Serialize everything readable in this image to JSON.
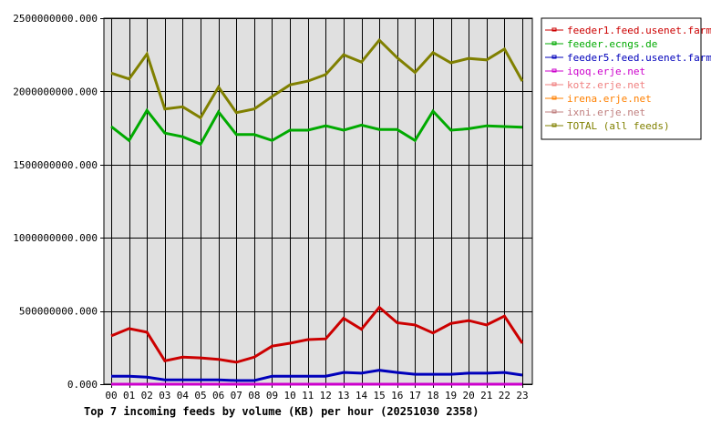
{
  "chart_data": {
    "type": "line",
    "title": "Top 7 incoming feeds by volume (KB) per hour (20251030 2358)",
    "xlabel": "",
    "ylabel": "",
    "ylim": [
      0,
      2500000000
    ],
    "yticks": [
      "0.000",
      "500000000.000",
      "1000000000.000",
      "1500000000.000",
      "2000000000.000",
      "2500000000.000"
    ],
    "ytick_values": [
      0,
      500000000,
      1000000000,
      1500000000,
      2000000000,
      2500000000
    ],
    "grid": true,
    "legend_position": "right",
    "plot_background": "#e0e0e0",
    "categories": [
      "00",
      "01",
      "02",
      "03",
      "04",
      "05",
      "06",
      "07",
      "08",
      "09",
      "10",
      "11",
      "12",
      "13",
      "14",
      "15",
      "16",
      "17",
      "18",
      "19",
      "20",
      "21",
      "22",
      "23"
    ],
    "series": [
      {
        "name": "feeder1.feed.usenet.farm",
        "color": "#cc0000",
        "values": [
          330000000,
          380000000,
          355000000,
          160000000,
          185000000,
          180000000,
          170000000,
          150000000,
          185000000,
          260000000,
          280000000,
          305000000,
          310000000,
          450000000,
          375000000,
          525000000,
          420000000,
          405000000,
          350000000,
          415000000,
          435000000,
          405000000,
          465000000,
          280000000
        ]
      },
      {
        "name": "feeder.ecngs.de",
        "color": "#00aa00",
        "values": [
          1760000000,
          1665000000,
          1870000000,
          1715000000,
          1690000000,
          1640000000,
          1860000000,
          1705000000,
          1705000000,
          1665000000,
          1735000000,
          1735000000,
          1765000000,
          1735000000,
          1770000000,
          1740000000,
          1740000000,
          1665000000,
          1865000000,
          1735000000,
          1745000000,
          1765000000,
          1760000000,
          1755000000
        ]
      },
      {
        "name": "feeder5.feed.usenet.farm",
        "color": "#0000bb",
        "values": [
          55000000,
          55000000,
          48000000,
          30000000,
          30000000,
          30000000,
          30000000,
          25000000,
          25000000,
          55000000,
          55000000,
          55000000,
          55000000,
          80000000,
          75000000,
          95000000,
          80000000,
          68000000,
          68000000,
          68000000,
          75000000,
          75000000,
          80000000,
          62000000
        ]
      },
      {
        "name": "iqoq.erje.net",
        "color": "#cc00cc",
        "values": [
          0,
          0,
          0,
          0,
          0,
          0,
          0,
          0,
          0,
          0,
          0,
          0,
          0,
          0,
          0,
          0,
          0,
          0,
          0,
          0,
          0,
          0,
          0,
          0
        ]
      },
      {
        "name": "kotz.erje.net",
        "color": "#f08080",
        "values": [
          0,
          0,
          0,
          0,
          0,
          0,
          0,
          0,
          0,
          0,
          0,
          0,
          0,
          0,
          0,
          0,
          0,
          0,
          0,
          0,
          0,
          0,
          0,
          0
        ]
      },
      {
        "name": "irena.erje.net",
        "color": "#ff8000",
        "values": [
          0,
          0,
          0,
          0,
          0,
          0,
          0,
          0,
          0,
          0,
          0,
          0,
          0,
          0,
          0,
          0,
          0,
          0,
          0,
          0,
          0,
          0,
          0,
          0
        ]
      },
      {
        "name": "ixni.erje.net",
        "color": "#c08080",
        "values": [
          0,
          0,
          0,
          0,
          0,
          0,
          0,
          0,
          0,
          0,
          0,
          0,
          0,
          0,
          0,
          0,
          0,
          0,
          0,
          0,
          0,
          0,
          0,
          0
        ]
      },
      {
        "name": "TOTAL (all feeds)",
        "color": "#808000",
        "values": [
          2125000000,
          2085000000,
          2255000000,
          1880000000,
          1895000000,
          1820000000,
          2030000000,
          1855000000,
          1880000000,
          1965000000,
          2045000000,
          2070000000,
          2115000000,
          2250000000,
          2200000000,
          2350000000,
          2230000000,
          2130000000,
          2265000000,
          2195000000,
          2225000000,
          2215000000,
          2290000000,
          2070000000
        ]
      }
    ]
  }
}
